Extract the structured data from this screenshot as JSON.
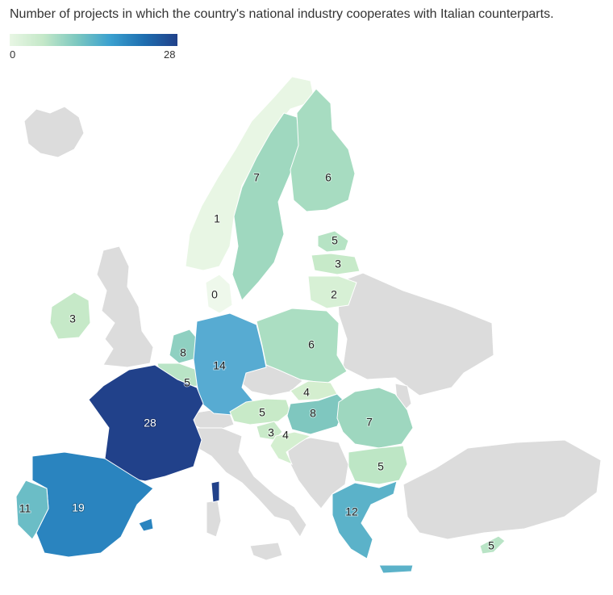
{
  "title": "Number of projects in which the country's national industry cooperates with Italian counterparts.",
  "legend": {
    "min": "0",
    "max": "28"
  },
  "colors": {
    "no_data": "#dcdcdc",
    "scale": [
      "#e8f6e4",
      "#c4e8c8",
      "#a4dcc4",
      "#7cc8c0",
      "#5ab0cf",
      "#3a8fc5",
      "#2a7fbf",
      "#21418a"
    ]
  },
  "countries": [
    {
      "name": "Norway",
      "value": "1"
    },
    {
      "name": "Sweden",
      "value": "7"
    },
    {
      "name": "Finland",
      "value": "6"
    },
    {
      "name": "Estonia",
      "value": "5"
    },
    {
      "name": "Latvia",
      "value": "3"
    },
    {
      "name": "Lithuania",
      "value": "2"
    },
    {
      "name": "Denmark",
      "value": "0"
    },
    {
      "name": "Ireland",
      "value": "3"
    },
    {
      "name": "Netherlands",
      "value": "8"
    },
    {
      "name": "Belgium",
      "value": "5"
    },
    {
      "name": "Germany",
      "value": "14"
    },
    {
      "name": "Poland",
      "value": "6"
    },
    {
      "name": "Czechia",
      "value": ""
    },
    {
      "name": "Slovakia",
      "value": "4"
    },
    {
      "name": "Austria",
      "value": "5"
    },
    {
      "name": "Hungary",
      "value": "8"
    },
    {
      "name": "Slovenia",
      "value": "3"
    },
    {
      "name": "Croatia",
      "value": "4"
    },
    {
      "name": "Romania",
      "value": "7"
    },
    {
      "name": "Bulgaria",
      "value": "5"
    },
    {
      "name": "France",
      "value": "28"
    },
    {
      "name": "Spain",
      "value": "19"
    },
    {
      "name": "Portugal",
      "value": "11"
    },
    {
      "name": "Greece",
      "value": "12"
    },
    {
      "name": "Cyprus",
      "value": "5"
    }
  ]
}
